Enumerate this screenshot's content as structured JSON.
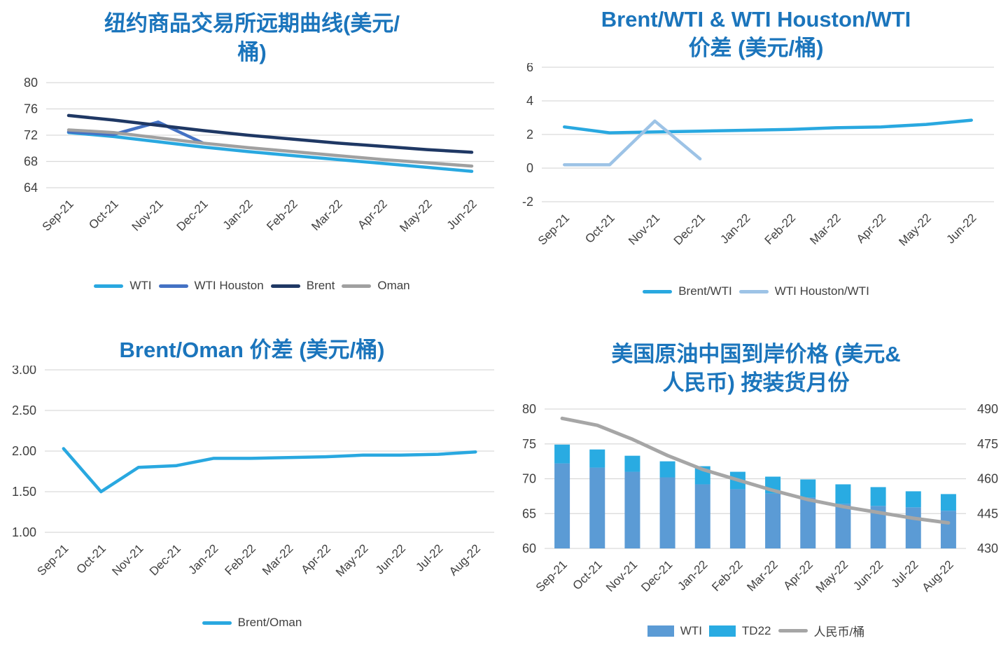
{
  "page": {
    "background": "#ffffff",
    "title_color": "#1b75bc",
    "axis_label_color": "#404040",
    "gridline_color": "#d9d9d9"
  },
  "chart_data": [
    {
      "id": "nymex-forward-curves",
      "type": "line",
      "title": "纽约商品交易所远期曲线(美元/桶)",
      "title_lines": [
        "纽约商品交易所远期曲线(美元/",
        "桶)"
      ],
      "categories": [
        "Sep-21",
        "Oct-21",
        "Nov-21",
        "Dec-21",
        "Jan-22",
        "Feb-22",
        "Mar-22",
        "Apr-22",
        "May-22",
        "Jun-22"
      ],
      "ylim": [
        64,
        80
      ],
      "yticks": [
        80,
        76,
        72,
        68,
        64
      ],
      "ytick_labels": [
        "80",
        "76",
        "72",
        "68",
        "64"
      ],
      "grid": true,
      "legend_position": "bottom",
      "series": [
        {
          "name": "WTI",
          "chart": "line",
          "color": "#29a8e0",
          "values": [
            72.4,
            71.8,
            71.0,
            70.2,
            69.5,
            68.9,
            68.3,
            67.7,
            67.1,
            66.5
          ]
        },
        {
          "name": "WTI Houston",
          "chart": "line",
          "color": "#4472c4",
          "values": [
            72.5,
            72.1,
            74.0,
            70.8,
            null,
            null,
            null,
            null,
            null,
            null
          ]
        },
        {
          "name": "Brent",
          "chart": "line",
          "color": "#1f3864",
          "values": [
            75.0,
            74.3,
            73.5,
            72.7,
            72.0,
            71.4,
            70.8,
            70.3,
            69.8,
            69.4
          ]
        },
        {
          "name": "Oman",
          "chart": "line",
          "color": "#a0a0a0",
          "values": [
            72.8,
            72.4,
            71.6,
            70.8,
            70.1,
            69.5,
            68.9,
            68.3,
            67.8,
            67.3
          ]
        }
      ]
    },
    {
      "id": "brent-wti-and-wti-houston-wti-spread",
      "type": "line",
      "title": "Brent/WTI & WTI Houston/WTI 价差 (美元/桶)",
      "title_lines": [
        "Brent/WTI & WTI Houston/WTI",
        "价差 (美元/桶)"
      ],
      "categories": [
        "Sep-21",
        "Oct-21",
        "Nov-21",
        "Dec-21",
        "Jan-22",
        "Feb-22",
        "Mar-22",
        "Apr-22",
        "May-22",
        "Jun-22"
      ],
      "ylim": [
        -2,
        6
      ],
      "yticks": [
        6,
        4,
        2,
        0,
        -2
      ],
      "ytick_labels": [
        "6",
        "4",
        "2",
        "0",
        "-2"
      ],
      "grid": true,
      "legend_position": "bottom",
      "series": [
        {
          "name": "Brent/WTI",
          "chart": "line",
          "color": "#29a8e0",
          "values": [
            2.45,
            2.1,
            2.15,
            2.2,
            2.25,
            2.3,
            2.4,
            2.45,
            2.6,
            2.85
          ]
        },
        {
          "name": "WTI Houston/WTI",
          "chart": "line",
          "color": "#9dc3e6",
          "values": [
            0.2,
            0.2,
            2.8,
            0.55,
            null,
            null,
            null,
            null,
            null,
            null
          ]
        }
      ]
    },
    {
      "id": "brent-oman-spread",
      "type": "line",
      "title": "Brent/Oman 价差 (美元/桶)",
      "title_lines": [
        "Brent/Oman 价差 (美元/桶)"
      ],
      "categories": [
        "Sep-21",
        "Oct-21",
        "Nov-21",
        "Dec-21",
        "Jan-22",
        "Feb-22",
        "Mar-22",
        "Apr-22",
        "May-22",
        "Jun-22",
        "Jul-22",
        "Aug-22"
      ],
      "ylim": [
        1.0,
        3.0
      ],
      "yticks": [
        3.0,
        2.5,
        2.0,
        1.5,
        1.0
      ],
      "ytick_labels": [
        "3.00",
        "2.50",
        "2.00",
        "1.50",
        "1.00"
      ],
      "grid": true,
      "legend_position": "bottom",
      "series": [
        {
          "name": "Brent/Oman",
          "chart": "line",
          "color": "#29a8e0",
          "values": [
            2.03,
            1.5,
            1.8,
            1.82,
            1.91,
            1.91,
            1.92,
            1.93,
            1.95,
            1.95,
            1.96,
            1.99
          ]
        }
      ]
    },
    {
      "id": "us-crude-china-cif-price",
      "type": "bar",
      "title": "美国原油中国到岸价格 (美元&人民币) 按装货月份",
      "title_lines": [
        "美国原油中国到岸价格 (美元&",
        "人民币) 按装货月份"
      ],
      "categories": [
        "Sep-21",
        "Oct-21",
        "Nov-21",
        "Dec-21",
        "Jan-22",
        "Feb-22",
        "Mar-22",
        "Apr-22",
        "May-22",
        "Jun-22",
        "Jul-22",
        "Aug-22"
      ],
      "ylim": [
        60,
        80
      ],
      "yticks": [
        80,
        75,
        70,
        65,
        60
      ],
      "ytick_labels": [
        "80",
        "75",
        "70",
        "65",
        "60"
      ],
      "y2lim": [
        430,
        490
      ],
      "y2ticks": [
        490,
        475,
        460,
        445,
        430
      ],
      "y2tick_labels": [
        "490",
        "475",
        "460",
        "445",
        "430"
      ],
      "grid": true,
      "legend_position": "bottom",
      "stack_totals": [
        74.9,
        74.2,
        73.3,
        72.5,
        71.8,
        71.0,
        70.3,
        69.9,
        69.2,
        68.8,
        68.2,
        67.8
      ],
      "series": [
        {
          "name": "WTI",
          "chart": "bar",
          "stack": true,
          "color": "#5b9bd5",
          "values": [
            72.2,
            71.6,
            71.0,
            70.2,
            69.2,
            68.5,
            67.9,
            67.3,
            66.4,
            66.1,
            65.9,
            65.4
          ]
        },
        {
          "name": "TD22",
          "chart": "bar",
          "stack": true,
          "color": "#29abe2",
          "values": [
            2.7,
            2.6,
            2.3,
            2.3,
            2.6,
            2.5,
            2.4,
            2.6,
            2.8,
            2.7,
            2.3,
            2.4
          ]
        },
        {
          "name": "人民币/桶",
          "chart": "line",
          "axis": "y2",
          "color": "#a6a6a6",
          "values": [
            486,
            483,
            477,
            470,
            464,
            459.5,
            455,
            451,
            448,
            445.5,
            443,
            441
          ]
        }
      ]
    }
  ]
}
